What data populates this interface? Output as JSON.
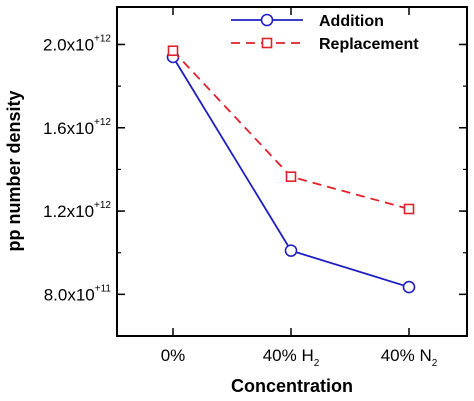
{
  "chart_data": {
    "type": "line",
    "categories": [
      "0%",
      "40% H2",
      "40% N2"
    ],
    "x_tick_labels": [
      {
        "main": "0%",
        "sub": ""
      },
      {
        "main": "40% H",
        "sub": "2"
      },
      {
        "main": "40% N",
        "sub": "2"
      }
    ],
    "y_ticks": [
      {
        "value": 800000000000.0,
        "base": "8.0x10",
        "exp": "+11"
      },
      {
        "value": 1200000000000.0,
        "base": "1.2x10",
        "exp": "+12"
      },
      {
        "value": 1600000000000.0,
        "base": "1.6x10",
        "exp": "+12"
      },
      {
        "value": 2000000000000.0,
        "base": "2.0x10",
        "exp": "+12"
      }
    ],
    "ylim": [
      600000000000.0,
      2180000000000.0
    ],
    "xlabel": "Concentration",
    "ylabel": "pp number density",
    "legend_position": "top-right",
    "grid": false,
    "series": [
      {
        "name": "Addition",
        "values": [
          1940000000000.0,
          1010000000000.0,
          835000000000.0
        ],
        "color": "#1f1fbf",
        "line_style": "solid",
        "marker": "circle"
      },
      {
        "name": "Replacement",
        "values": [
          1970000000000.0,
          1365000000000.0,
          1210000000000.0
        ],
        "color": "#e0202a",
        "line_style": "dashed",
        "marker": "square"
      }
    ]
  }
}
